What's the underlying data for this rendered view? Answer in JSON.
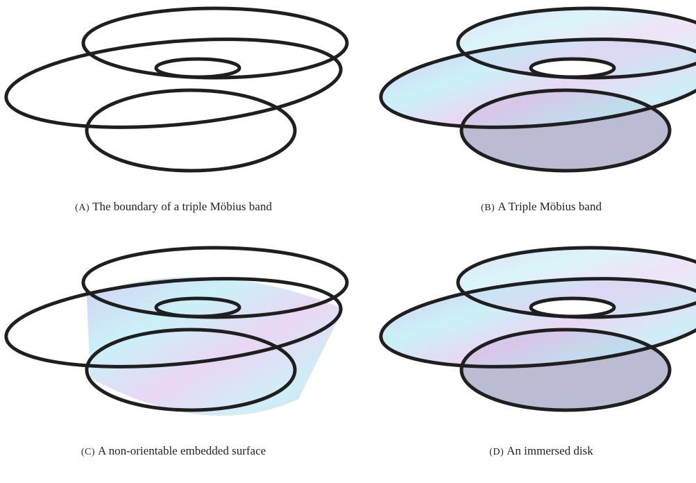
{
  "figure": {
    "panels": [
      {
        "label": "(A)",
        "caption": "The boundary of a triple Möbius band"
      },
      {
        "label": "(B)",
        "caption": "A Triple Möbius band"
      },
      {
        "label": "(C)",
        "caption": "A non-orientable embedded surface"
      },
      {
        "label": "(D)",
        "caption": "An immersed disk"
      }
    ]
  }
}
